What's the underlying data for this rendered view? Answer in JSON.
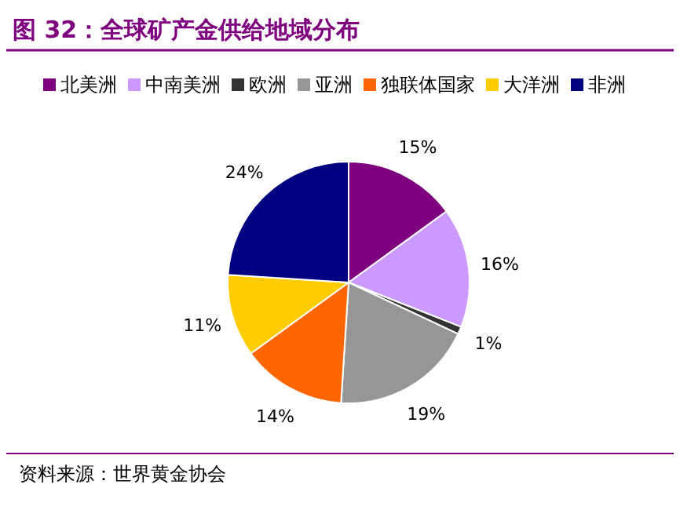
{
  "chart_data": {
    "type": "pie",
    "title": "图 32：全球矿产金供给地域分布",
    "categories": [
      "北美洲",
      "中南美洲",
      "欧洲",
      "亚洲",
      "独联体国家",
      "大洋洲",
      "非洲"
    ],
    "values": [
      15,
      16,
      1,
      19,
      14,
      11,
      24
    ],
    "colors": [
      "#7f007f",
      "#cc99ff",
      "#333333",
      "#969696",
      "#ff6600",
      "#ffcc00",
      "#000080"
    ],
    "value_labels": [
      "15%",
      "16%",
      "1%",
      "19%",
      "14%",
      "11%",
      "24%"
    ],
    "legend": "top",
    "annotations": [
      "资料来源：世界黄金协会"
    ]
  }
}
